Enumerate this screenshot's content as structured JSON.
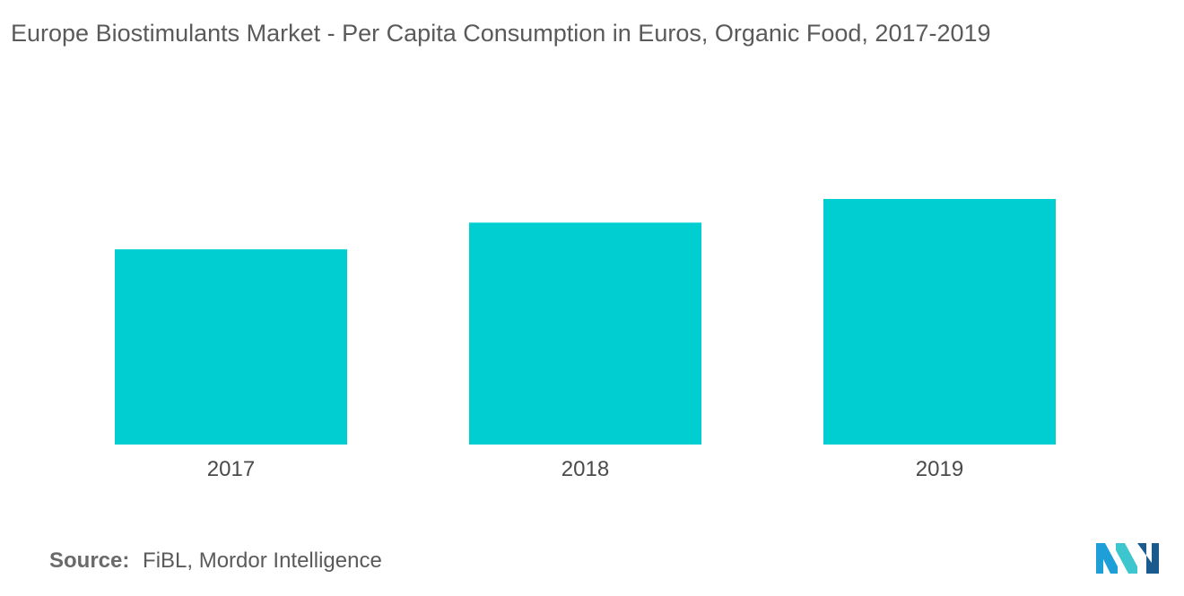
{
  "chart_data": {
    "type": "bar",
    "title": "Europe Biostimulants Market -  Per Capita Consumption in Euros, Organic Food, 2017-2019",
    "categories": [
      "2017",
      "2018",
      "2019"
    ],
    "values": [
      62,
      70.5,
      78
    ],
    "xlabel": "",
    "ylabel": "",
    "ylim": [
      0,
      80
    ],
    "grid": false,
    "legend": "none",
    "bar_color": "#00CED1"
  },
  "footer": {
    "source_label": "Source:",
    "source_value": "FiBL, Mordor Intelligence"
  },
  "logo": {
    "icon": "mordor-intelligence-logo",
    "colors": [
      "#1f9fd8",
      "#3ec6cf",
      "#1a5a8c"
    ]
  }
}
